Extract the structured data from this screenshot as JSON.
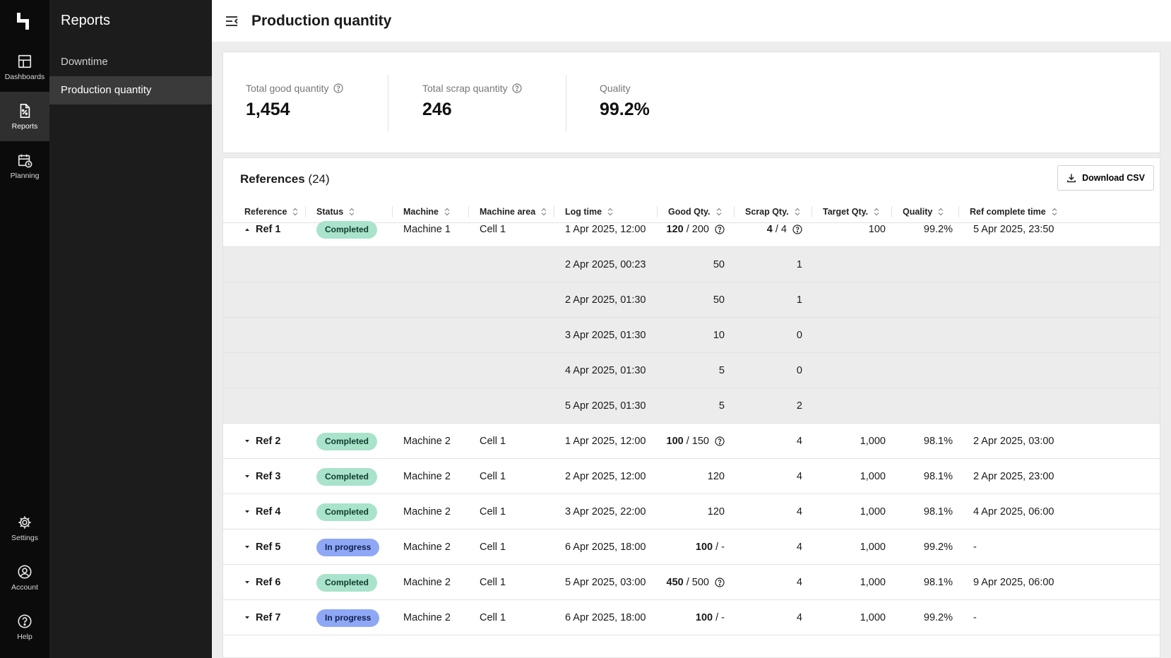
{
  "rail": {
    "items": [
      {
        "label": "Dashboards",
        "icon": "dashboard-icon"
      },
      {
        "label": "Reports",
        "icon": "report-icon"
      },
      {
        "label": "Planning",
        "icon": "calendar-clock-icon"
      }
    ],
    "bottom": [
      {
        "label": "Settings",
        "icon": "gear-icon"
      },
      {
        "label": "Account",
        "icon": "user-circle-icon"
      },
      {
        "label": "Help",
        "icon": "help-circle-icon"
      }
    ]
  },
  "subnav": {
    "title": "Reports",
    "items": [
      {
        "label": "Downtime"
      },
      {
        "label": "Production quantity"
      }
    ]
  },
  "header": {
    "title": "Production quantity"
  },
  "summary": {
    "good_label": "Total good quantity",
    "good_value": "1,454",
    "scrap_label": "Total scrap quantity",
    "scrap_value": "246",
    "quality_label": "Quality",
    "quality_value": "99.2%"
  },
  "references": {
    "title": "References",
    "count": "(24)",
    "download_label": "Download CSV",
    "columns": [
      "Reference",
      "Status",
      "Machine",
      "Machine area",
      "Log time",
      "Good Qty.",
      "Scrap Qty.",
      "Target Qty.",
      "Quality",
      "Ref complete time"
    ]
  },
  "rows": [
    {
      "ref": "Ref 1",
      "status": "Completed",
      "machine": "Machine 1",
      "area": "Cell 1",
      "log": "1 Apr 2025, 12:00",
      "good_b": "120",
      "good_rest": " / 200",
      "scrap_b": "4",
      "scrap_rest": " / 4",
      "target": "100",
      "quality": "99.2%",
      "complete": "5 Apr 2025, 23:50"
    },
    {
      "log": "2 Apr 2025, 00:23",
      "good": "50",
      "scrap": "1"
    },
    {
      "log": "2 Apr 2025, 01:30",
      "good": "50",
      "scrap": "1"
    },
    {
      "log": "3 Apr 2025, 01:30",
      "good": "10",
      "scrap": "0"
    },
    {
      "log": "4 Apr 2025, 01:30",
      "good": "5",
      "scrap": "0"
    },
    {
      "log": "5 Apr 2025, 01:30",
      "good": "5",
      "scrap": "2"
    },
    {
      "ref": "Ref 2",
      "status": "Completed",
      "machine": "Machine 2",
      "area": "Cell 1",
      "log": "1 Apr 2025, 12:00",
      "good_b": "100",
      "good_rest": " / 150",
      "scrap": "4",
      "target": "1,000",
      "quality": "98.1%",
      "complete": "2 Apr 2025, 03:00"
    },
    {
      "ref": "Ref 3",
      "status": "Completed",
      "machine": "Machine 2",
      "area": "Cell 1",
      "log": "2 Apr 2025, 12:00",
      "good": "120",
      "scrap": "4",
      "target": "1,000",
      "quality": "98.1%",
      "complete": "2 Apr 2025, 23:00"
    },
    {
      "ref": "Ref 4",
      "status": "Completed",
      "machine": "Machine 2",
      "area": "Cell 1",
      "log": "3 Apr 2025, 22:00",
      "good": "120",
      "scrap": "4",
      "target": "1,000",
      "quality": "98.1%",
      "complete": "4 Apr 2025, 06:00"
    },
    {
      "ref": "Ref 5",
      "status": "In progress",
      "machine": "Machine 2",
      "area": "Cell 1",
      "log": "6 Apr 2025, 18:00",
      "good_b": "100",
      "good_rest": " / -",
      "scrap": "4",
      "target": "1,000",
      "quality": "99.2%",
      "complete": "-"
    },
    {
      "ref": "Ref 6",
      "status": "Completed",
      "machine": "Machine 2",
      "area": "Cell 1",
      "log": "5 Apr 2025, 03:00",
      "good_b": "450",
      "good_rest": " / 500",
      "scrap": "4",
      "target": "1,000",
      "quality": "98.1%",
      "complete": "9 Apr 2025, 06:00"
    },
    {
      "ref": "Ref 7",
      "status": "In progress",
      "machine": "Machine 2",
      "area": "Cell 1",
      "log": "6 Apr 2025, 18:00",
      "good_b": "100",
      "good_rest": " / -",
      "scrap": "4",
      "target": "1,000",
      "quality": "99.2%",
      "complete": "-"
    }
  ],
  "colors": {
    "completed_badge": "#a9e3cc",
    "in_progress_badge": "#8ea8f5",
    "rail_bg": "#0b0b0b",
    "subnav_bg": "#1c1c1c"
  }
}
